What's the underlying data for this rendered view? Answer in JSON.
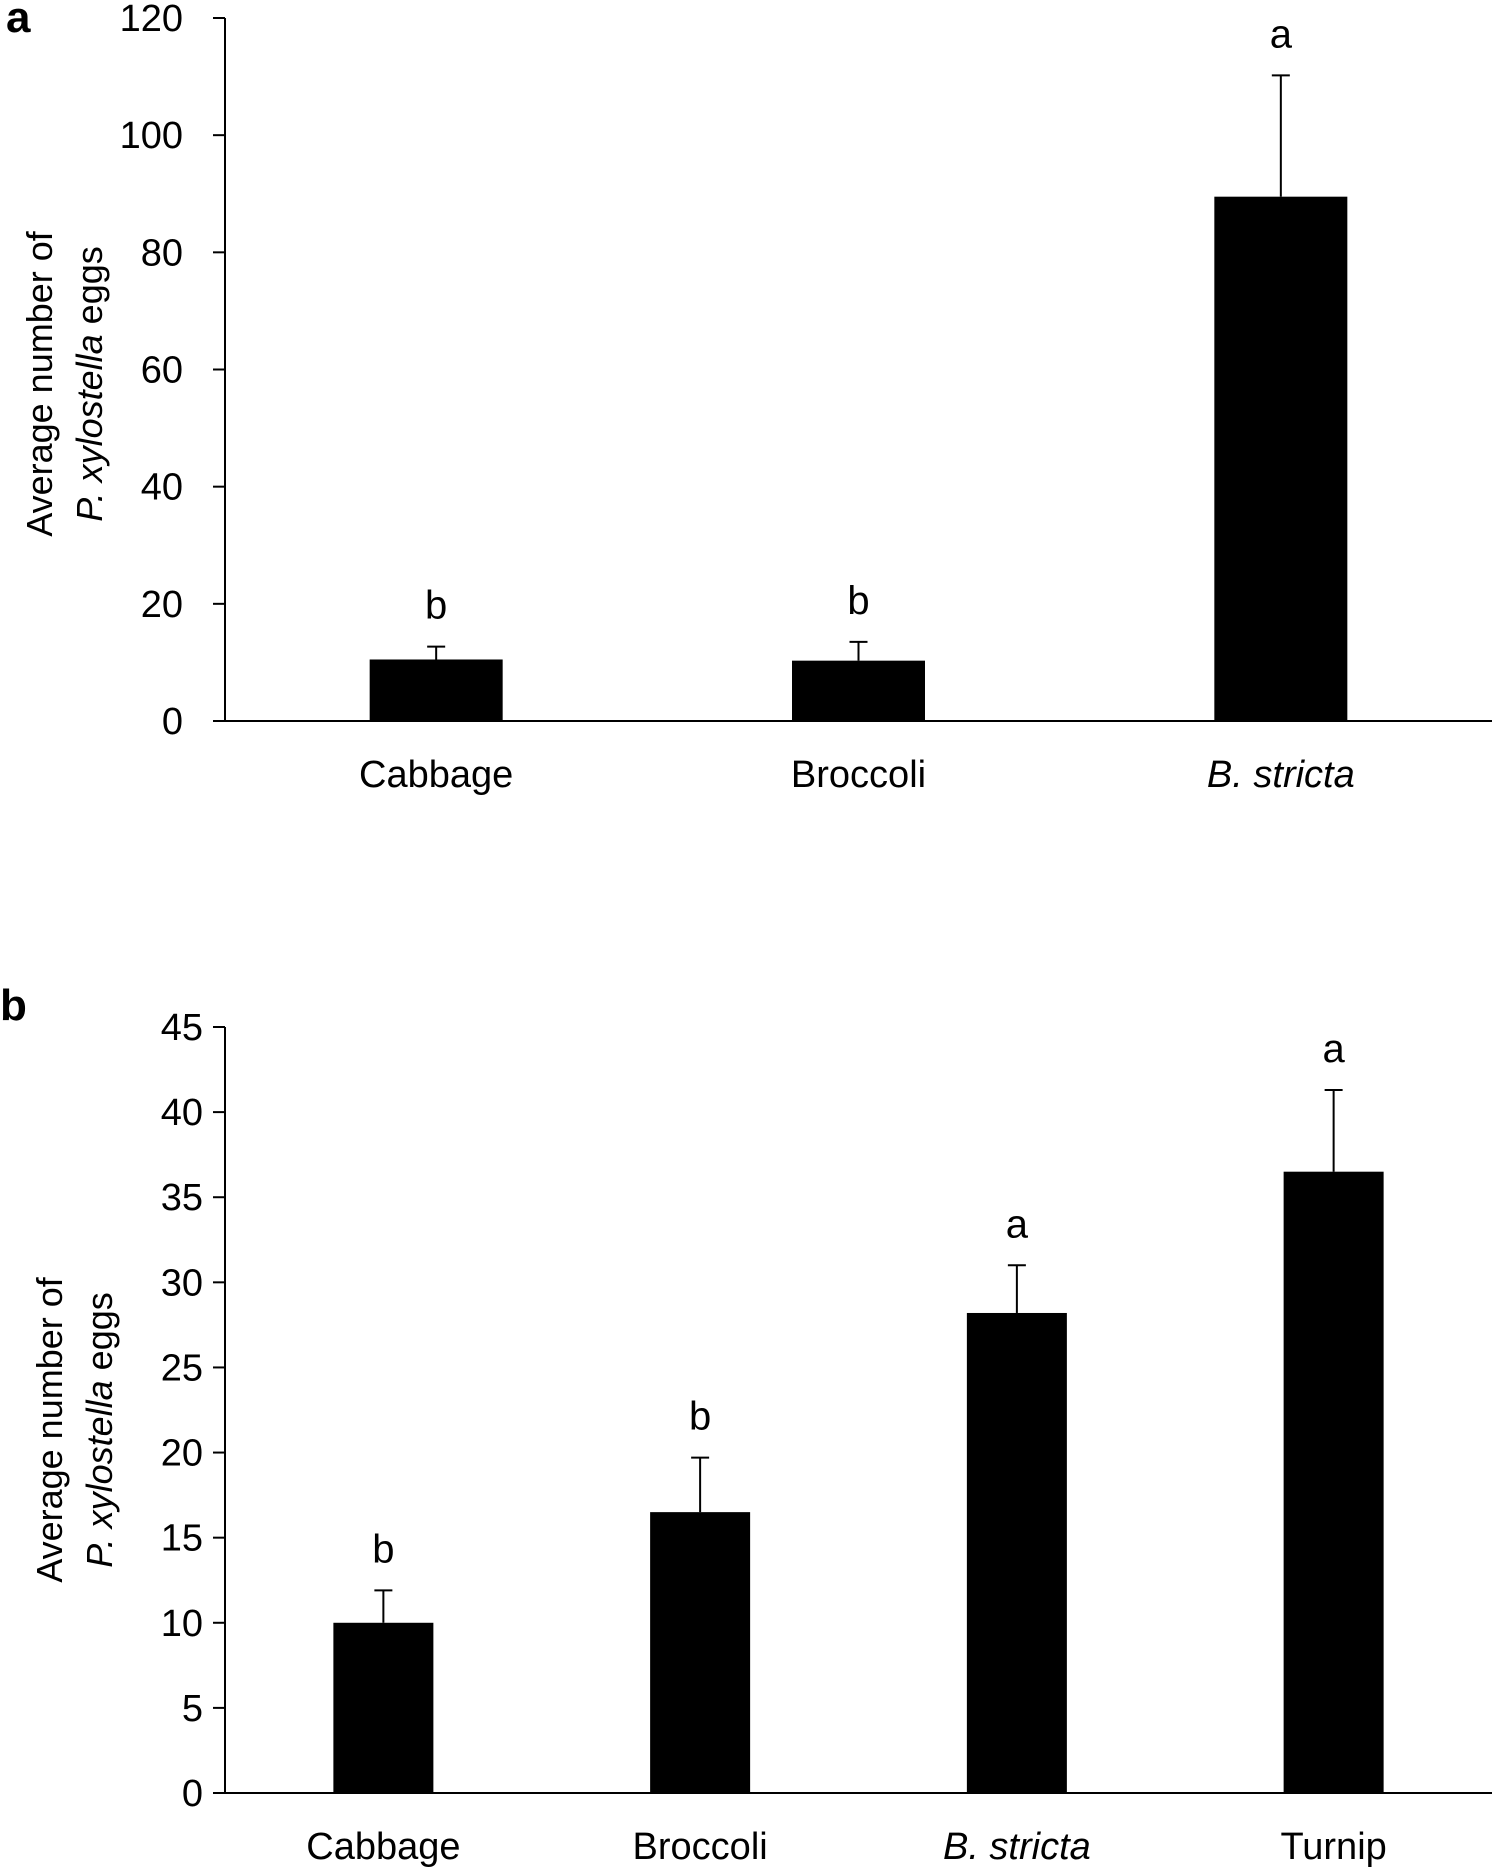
{
  "chart_data": [
    {
      "panel_label": "a",
      "type": "bar",
      "categories": [
        "Cabbage",
        "Broccoli",
        "B. stricta"
      ],
      "italic_categories": [
        false,
        false,
        true
      ],
      "values": [
        10.5,
        10.3,
        89.5
      ],
      "errors": [
        2.2,
        3.2,
        20.7
      ],
      "significance": [
        "b",
        "b",
        "a"
      ],
      "ylim": [
        0,
        120
      ],
      "yticks": [
        0,
        20,
        40,
        60,
        80,
        100,
        120
      ],
      "ylabel_line1": "Average number of",
      "ylabel_line2_italic": "P. xylostella",
      "ylabel_line2_rest": " eggs",
      "bar_color": "#000000"
    },
    {
      "panel_label": "b",
      "type": "bar",
      "categories": [
        "Cabbage",
        "Broccoli",
        "B. stricta",
        "Turnip"
      ],
      "italic_categories": [
        false,
        false,
        true,
        false
      ],
      "values": [
        10.0,
        16.5,
        28.2,
        36.5
      ],
      "errors": [
        1.9,
        3.2,
        2.8,
        4.8
      ],
      "significance": [
        "b",
        "b",
        "a",
        "a"
      ],
      "ylim": [
        0,
        45
      ],
      "yticks": [
        0,
        5,
        10,
        15,
        20,
        25,
        30,
        35,
        40,
        45
      ],
      "ylabel_line1": "Average number of",
      "ylabel_line2_italic": "P. xylostella",
      "ylabel_line2_rest": " eggs",
      "bar_color": "#000000"
    }
  ]
}
